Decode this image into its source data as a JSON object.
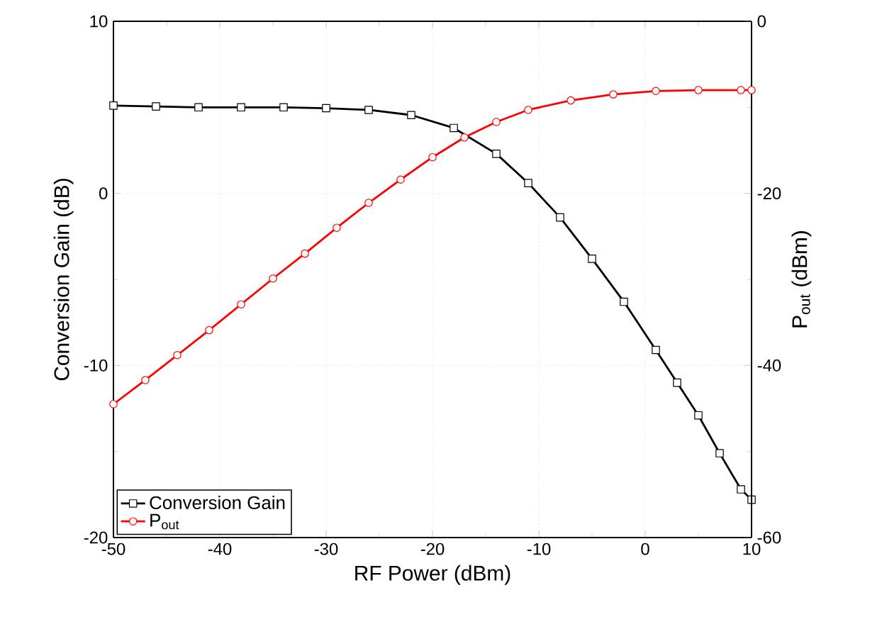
{
  "chart_data": {
    "type": "line",
    "xlabel": "RF Power (dBm)",
    "ylabel": "Conversion Gain (dB)",
    "y2label": "P$_{out}$ (dBm)",
    "xlim": [
      -50,
      10
    ],
    "xticks": [
      -50,
      -40,
      -30,
      -20,
      -10,
      0,
      10
    ],
    "ylim": [
      -20,
      10
    ],
    "yticks": [
      -20,
      -10,
      0,
      10
    ],
    "y2lim": [
      -60,
      0
    ],
    "y2ticks": [
      -60,
      -40,
      -20,
      0
    ],
    "grid": true,
    "legend": "bottom left",
    "series": [
      {
        "name": "Conversion Gain",
        "color": "#000000",
        "marker": "square",
        "x": [
          -50,
          -46,
          -42,
          -38,
          -34,
          -30,
          -26,
          -22,
          -18,
          -14,
          -11,
          -8,
          -5,
          -2,
          1,
          3,
          5,
          7,
          9,
          10
        ],
        "values": [
          5.1,
          5.05,
          5.0,
          5.0,
          5.0,
          4.95,
          4.85,
          4.55,
          3.8,
          2.3,
          0.6,
          -1.4,
          -3.8,
          -6.3,
          -9.1,
          -11.0,
          -12.9,
          -15.1,
          -17.2,
          -17.8
        ]
      },
      {
        "name": "P$_{out}$",
        "color": "#ff0000",
        "marker": "circle",
        "axis": "y2",
        "x": [
          -50,
          -47,
          -44,
          -41,
          -38,
          -35,
          -32,
          -29,
          -26,
          -23,
          -20,
          -17,
          -14,
          -11,
          -7,
          -3,
          1,
          5,
          9,
          10
        ],
        "values": [
          -44.5,
          -41.7,
          -38.8,
          -35.9,
          -32.9,
          -29.9,
          -27.0,
          -24.0,
          -21.1,
          -18.4,
          -15.8,
          -13.5,
          -11.7,
          -10.3,
          -9.2,
          -8.5,
          -8.1,
          -8.0,
          -8.0,
          -8.0
        ]
      }
    ]
  }
}
